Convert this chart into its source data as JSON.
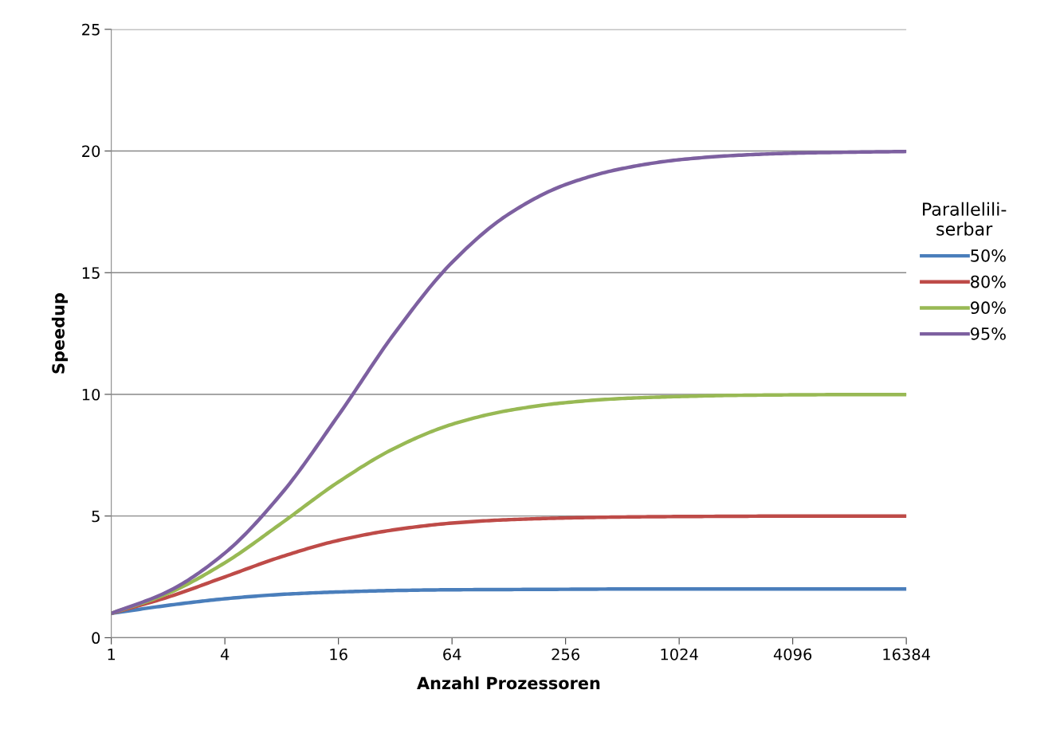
{
  "chart_data": {
    "type": "line",
    "xlabel": "Anzahl Prozessoren",
    "ylabel": "Speedup",
    "legend_title": "Parallelili-\nserbar",
    "log": "x",
    "x": [
      1,
      2,
      4,
      8,
      16,
      32,
      64,
      128,
      256,
      512,
      1024,
      2048,
      4096,
      8192,
      16384
    ],
    "series": [
      {
        "name": "50%",
        "color": "#4a7ebb",
        "values": [
          1,
          1.33,
          1.6,
          1.78,
          1.88,
          1.94,
          1.97,
          1.98,
          1.99,
          2.0,
          2.0,
          2.0,
          2.0,
          2.0,
          2.0
        ]
      },
      {
        "name": "80%",
        "color": "#be4b48",
        "values": [
          1,
          1.67,
          2.5,
          3.33,
          4.0,
          4.44,
          4.71,
          4.85,
          4.92,
          4.96,
          4.98,
          4.99,
          5.0,
          5.0,
          5.0
        ]
      },
      {
        "name": "90%",
        "color": "#98b954",
        "values": [
          1,
          1.82,
          3.08,
          4.71,
          6.4,
          7.8,
          8.77,
          9.34,
          9.66,
          9.83,
          9.91,
          9.96,
          9.98,
          9.99,
          9.99
        ]
      },
      {
        "name": "95%",
        "color": "#7d60a0",
        "values": [
          1,
          1.9,
          3.48,
          5.93,
          9.14,
          12.55,
          15.42,
          17.41,
          18.62,
          19.28,
          19.64,
          19.82,
          19.91,
          19.95,
          19.98
        ]
      }
    ],
    "xlim": [
      1,
      16384
    ],
    "xticks": [
      1,
      4,
      16,
      64,
      256,
      1024,
      4096,
      16384
    ],
    "ylim": [
      0,
      25
    ],
    "yticks": [
      0,
      5,
      10,
      15,
      20,
      25
    ],
    "grid": "y",
    "legend": "right",
    "marker": "none",
    "line_style": "solid"
  }
}
